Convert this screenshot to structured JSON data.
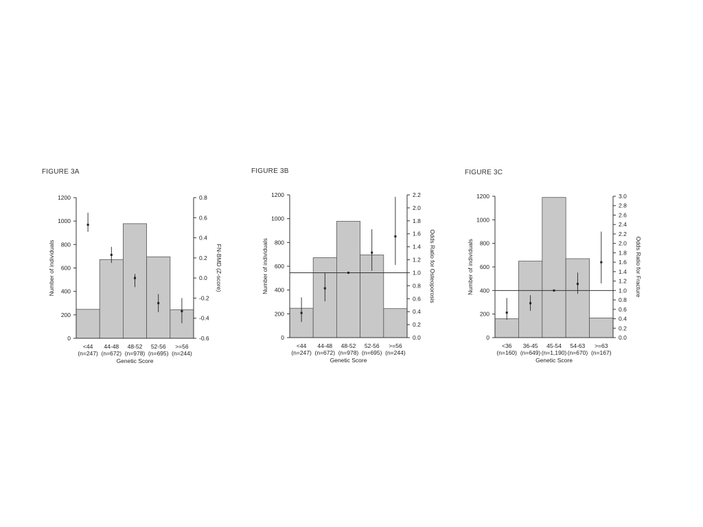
{
  "colors": {
    "bar_fill": "#c8c8c8",
    "bar_stroke": "#555555",
    "axis": "#333333",
    "marker": "#222222"
  },
  "chart_data": [
    {
      "type": "bar",
      "title": "FIGURE 3A",
      "xlabel": "Genetic Score",
      "ylabel": "Number of individuals",
      "y2label": "FN-BMD (Z-score)",
      "categories": [
        "<44",
        "44-48",
        "48-52",
        "52-56",
        ">=56"
      ],
      "category_counts": [
        "(n=247)",
        "(n=672)",
        "(n=978)",
        "(n=695)",
        "(n=244)"
      ],
      "values": [
        247,
        672,
        978,
        695,
        244
      ],
      "ylim": [
        0,
        1200
      ],
      "yticks": [
        0,
        200,
        400,
        600,
        800,
        1000,
        1200
      ],
      "y2lim": [
        -0.6,
        0.8
      ],
      "y2ticks": [
        "-0.6",
        "-0.4",
        "-0.2",
        "0.0",
        "0.2",
        "0.4",
        "0.6",
        "0.8"
      ],
      "point_series": {
        "y": [
          0.53,
          0.23,
          0.0,
          -0.25,
          -0.33
        ],
        "lower": [
          0.46,
          0.15,
          -0.09,
          -0.34,
          -0.45
        ],
        "upper": [
          0.65,
          0.31,
          0.04,
          -0.16,
          -0.2
        ]
      },
      "reference_line": null
    },
    {
      "type": "bar",
      "title": "FIGURE 3B",
      "xlabel": "Genetic Score",
      "ylabel": "Number of individuals",
      "y2label": "Odds Ratio for Osteoporosis",
      "categories": [
        "<44",
        "44-48",
        "48-52",
        "52-56",
        ">=56"
      ],
      "category_counts": [
        "(n=247)",
        "(n=672)",
        "(n=978)",
        "(n=695)",
        "(n=244)"
      ],
      "values": [
        247,
        672,
        978,
        695,
        244
      ],
      "ylim": [
        0,
        1200
      ],
      "yticks": [
        0,
        200,
        400,
        600,
        800,
        1000,
        1200
      ],
      "y2lim": [
        0,
        2.2
      ],
      "y2ticks": [
        "0.0",
        "0.2",
        "0.4",
        "0.6",
        "0.8",
        "1.0",
        "1.2",
        "1.4",
        "1.6",
        "1.8",
        "2.0",
        "2.2"
      ],
      "point_series": {
        "y": [
          0.38,
          0.76,
          1.0,
          1.31,
          1.56
        ],
        "lower": [
          0.24,
          0.56,
          0.99,
          1.03,
          1.12
        ],
        "upper": [
          0.62,
          1.0,
          1.01,
          1.67,
          2.17
        ]
      },
      "reference_line": 1.0
    },
    {
      "type": "bar",
      "title": "FIGURE 3C",
      "xlabel": "Genetic Score",
      "ylabel": "Number of individuals",
      "y2label": "Odds Ratio for Fracture",
      "categories": [
        "<36",
        "36-45",
        "45-54",
        "54-63",
        ">=63"
      ],
      "category_counts": [
        "(n=160)",
        "(n=649)",
        "(n=1,190)",
        "(n=670)",
        "(n=167)"
      ],
      "values": [
        160,
        649,
        1190,
        670,
        167
      ],
      "ylim": [
        0,
        1200
      ],
      "yticks": [
        0,
        200,
        400,
        600,
        800,
        1000,
        1200
      ],
      "y2lim": [
        0,
        3.0
      ],
      "y2ticks": [
        "0.0",
        "0.2",
        "0.4",
        "0.6",
        "0.8",
        "1.0",
        "1.2",
        "1.4",
        "1.6",
        "1.8",
        "2.0",
        "2.2",
        "2.4",
        "2.6",
        "2.8",
        "3.0"
      ],
      "point_series": {
        "y": [
          0.53,
          0.73,
          1.0,
          1.14,
          1.6
        ],
        "lower": [
          0.38,
          0.57,
          0.99,
          0.93,
          1.15
        ],
        "upper": [
          0.84,
          0.9,
          1.01,
          1.38,
          2.25
        ]
      },
      "reference_line": 1.0
    }
  ]
}
